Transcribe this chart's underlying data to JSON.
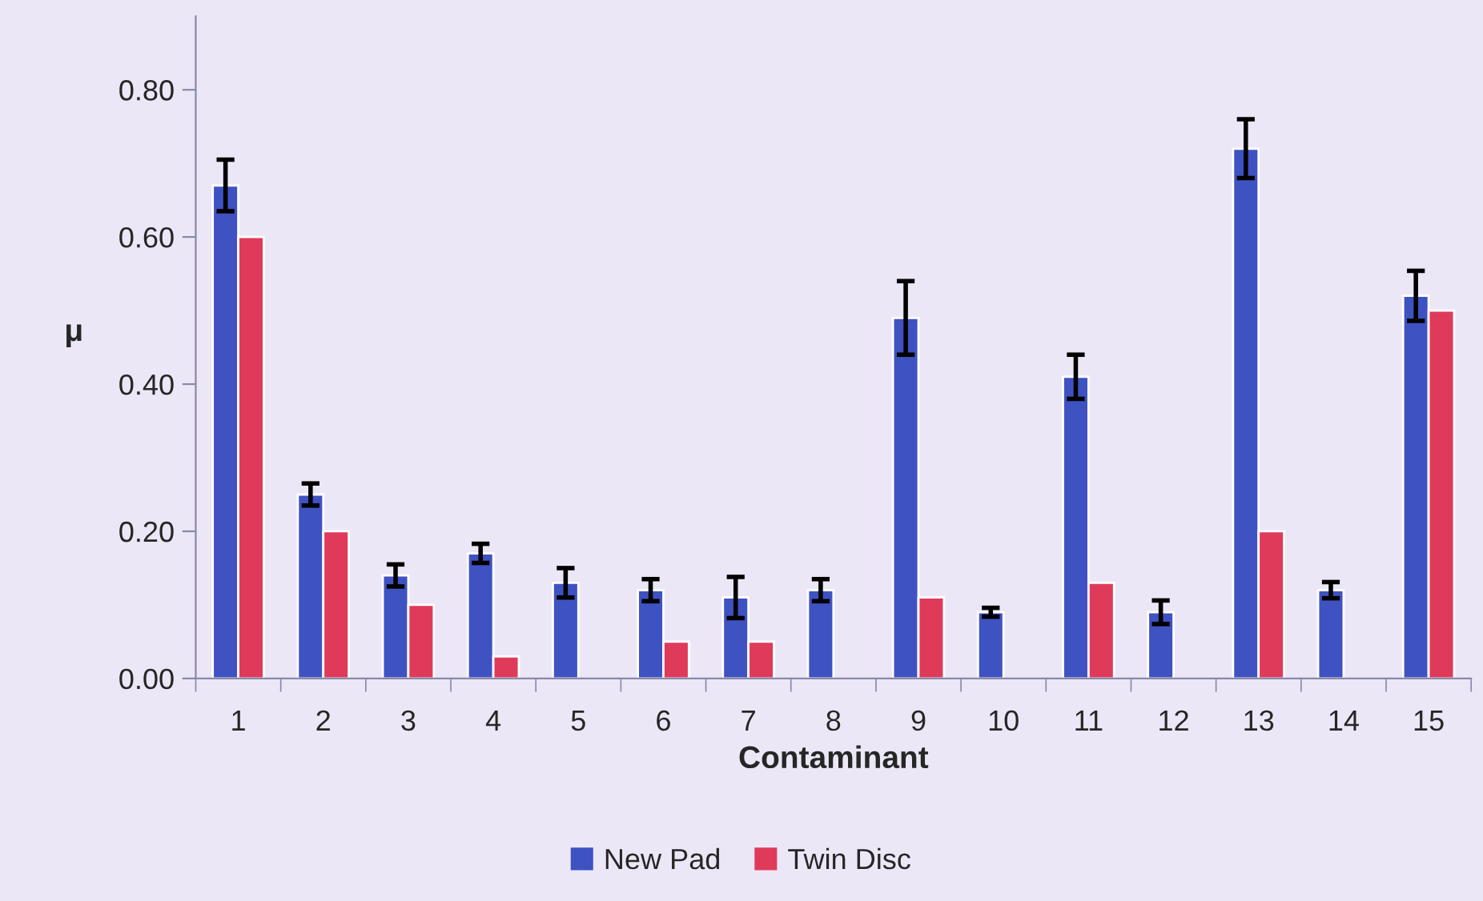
{
  "chart_data": {
    "type": "bar",
    "xlabel": "Contaminant",
    "ylabel": "μ",
    "categories": [
      "1",
      "2",
      "3",
      "4",
      "5",
      "6",
      "7",
      "8",
      "9",
      "10",
      "11",
      "12",
      "13",
      "14",
      "15"
    ],
    "series": [
      {
        "name": "New Pad",
        "color": "#3f52c2",
        "values": [
          0.67,
          0.25,
          0.14,
          0.17,
          0.13,
          0.12,
          0.11,
          0.12,
          0.49,
          0.09,
          0.41,
          0.09,
          0.72,
          0.12,
          0.52
        ],
        "errors": [
          0.035,
          0.015,
          0.015,
          0.013,
          0.02,
          0.015,
          0.028,
          0.015,
          0.05,
          0.006,
          0.03,
          0.016,
          0.04,
          0.011,
          0.034
        ]
      },
      {
        "name": "Twin Disc",
        "color": "#e03a5a",
        "values": [
          0.6,
          0.2,
          0.1,
          0.03,
          null,
          0.05,
          0.05,
          null,
          0.11,
          null,
          0.13,
          null,
          0.2,
          null,
          0.5
        ]
      }
    ],
    "ylim": [
      0,
      0.9
    ],
    "yticks": [
      {
        "value": 0,
        "label": "0.00"
      },
      {
        "value": 0.2,
        "label": "0.20"
      },
      {
        "value": 0.4,
        "label": "0.40"
      },
      {
        "value": 0.6,
        "label": "0.60"
      },
      {
        "value": 0.8,
        "label": "0.80"
      }
    ],
    "legend": "bottom"
  }
}
